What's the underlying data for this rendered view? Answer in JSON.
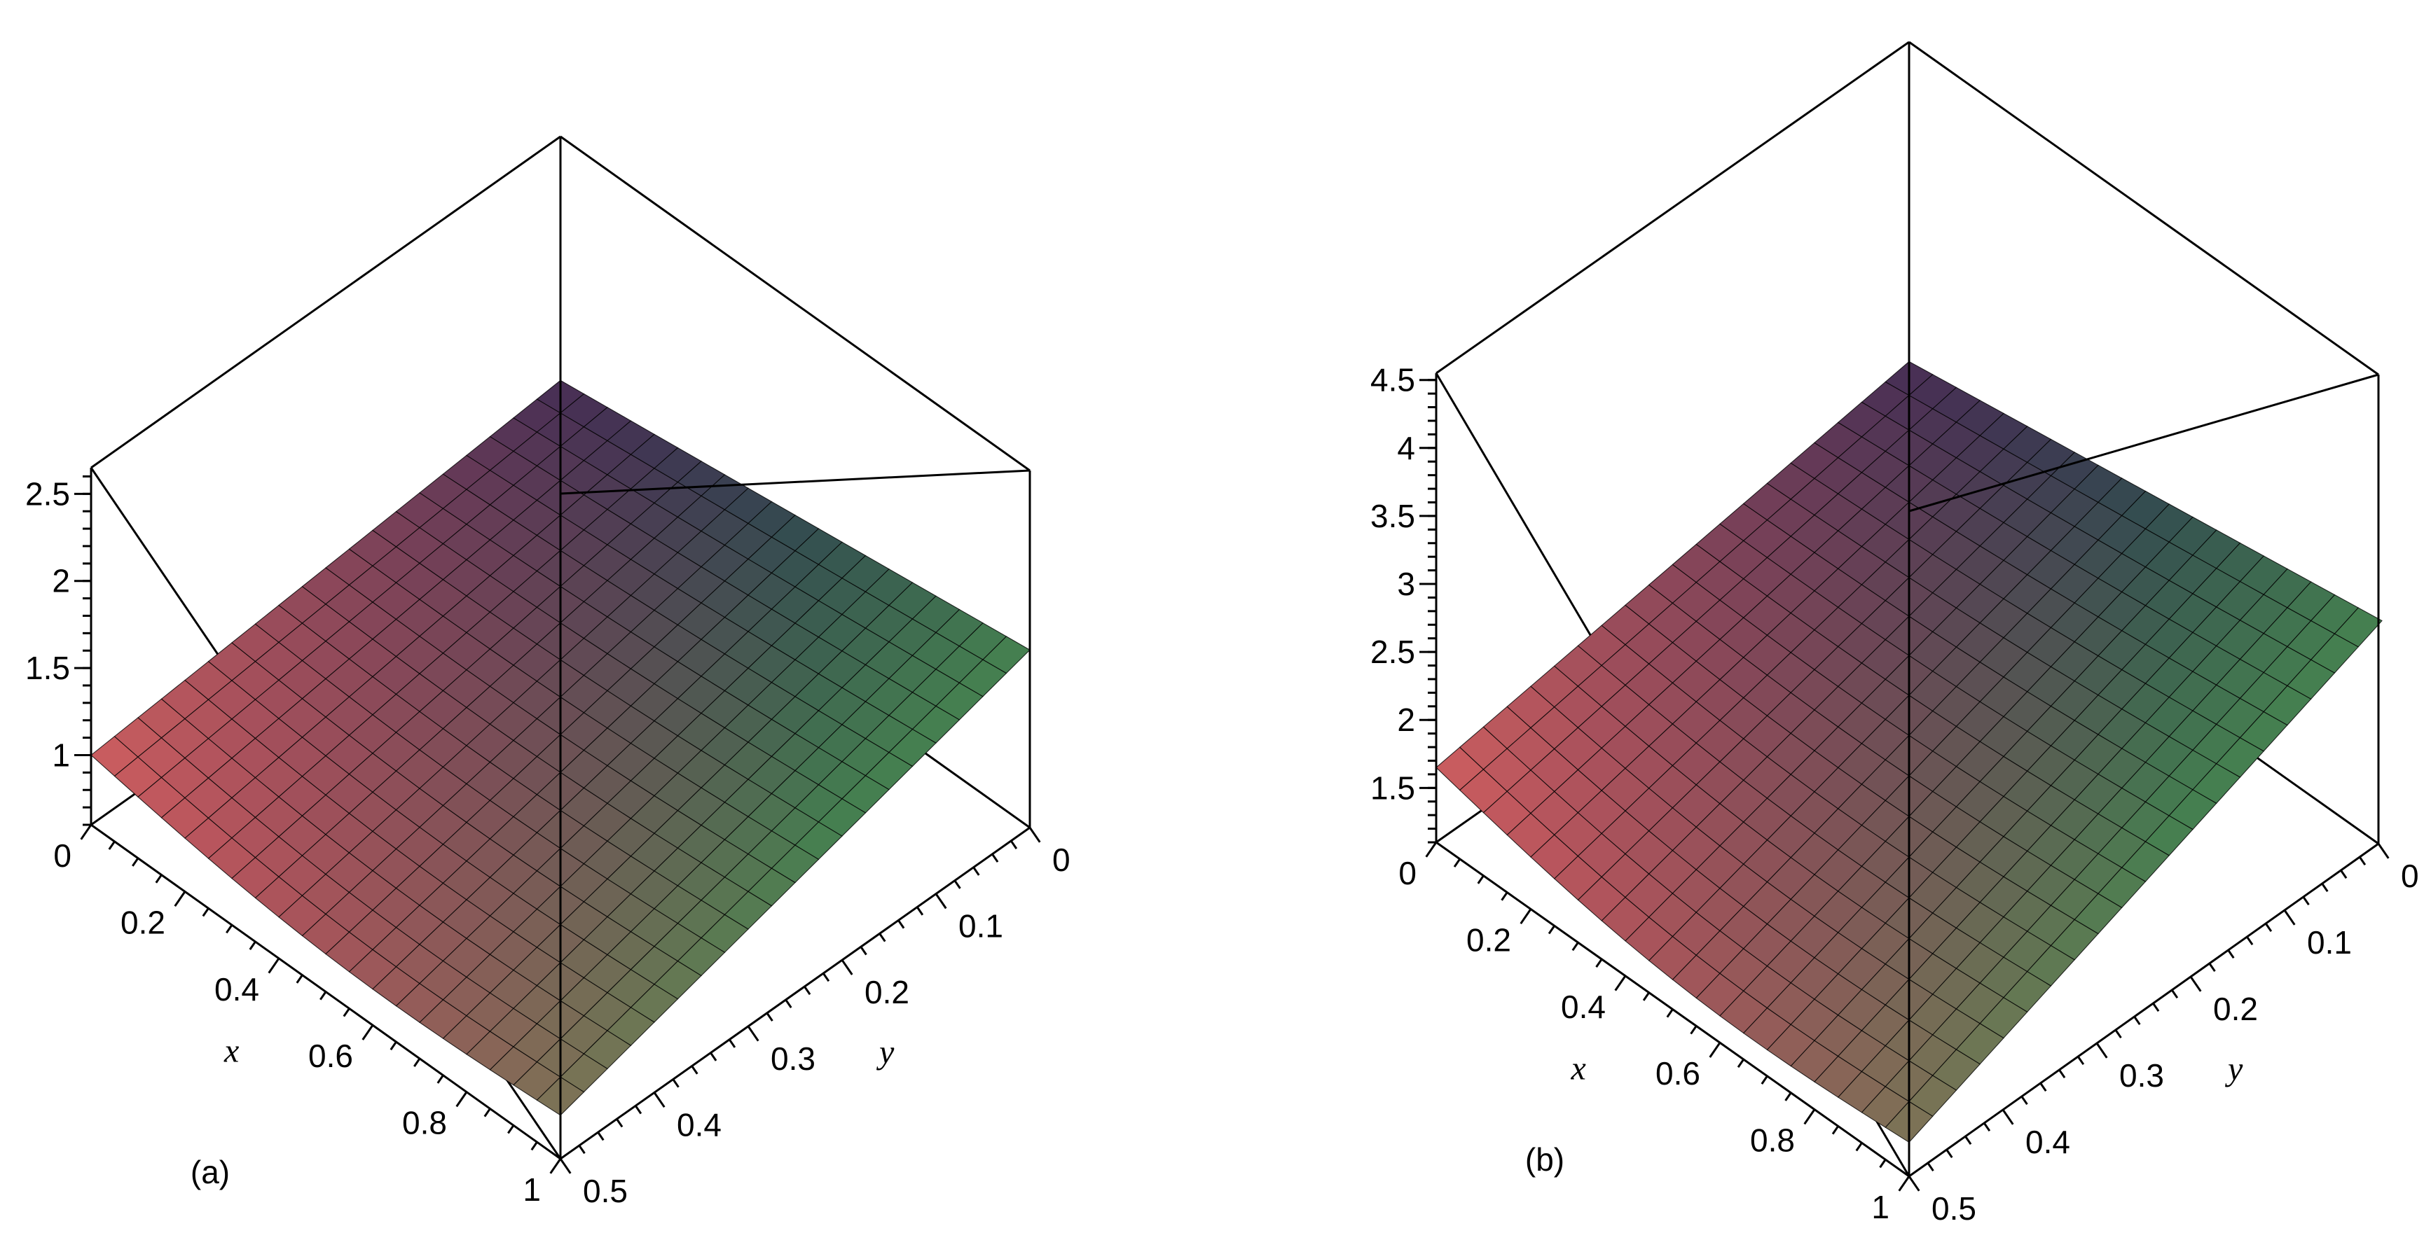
{
  "chart_data": [
    {
      "type": "surface",
      "panel_label": "(a)",
      "xlabel": "x",
      "ylabel": "y",
      "xlim": [
        0,
        1
      ],
      "ylim": [
        0,
        0.5
      ],
      "zlim": [
        0.6,
        2.65
      ],
      "x_ticks": [
        "0",
        "0.2",
        "0.4",
        "0.6",
        "0.8",
        "1"
      ],
      "y_ticks": [
        "0",
        "0.1",
        "0.2",
        "0.3",
        "0.4",
        "0.5"
      ],
      "z_ticks": [
        "1",
        "1.5",
        "2",
        "2.5"
      ],
      "surface_corners": {
        "x0_y0.5": 1.0,
        "x1_y0": 1.62,
        "x0_y0": 1.25,
        "x1_y0.5": 0.85
      },
      "colors": {
        "low": "#c85050",
        "high": "#3c8c50"
      }
    },
    {
      "type": "surface",
      "panel_label": "(b)",
      "xlabel": "x",
      "ylabel": "y",
      "xlim": [
        0,
        1
      ],
      "ylim": [
        0,
        0.5
      ],
      "zlim": [
        1.1,
        4.55
      ],
      "x_ticks": [
        "0",
        "0.2",
        "0.4",
        "0.6",
        "0.8",
        "1"
      ],
      "y_ticks": [
        "0",
        "0.1",
        "0.2",
        "0.3",
        "0.4",
        "0.5"
      ],
      "z_ticks": [
        "1.5",
        "2",
        "2.5",
        "3",
        "3.5",
        "4",
        "4.5"
      ],
      "surface_corners": {
        "x0_y0.5": 1.65,
        "x1_y0": 2.75,
        "x0_y0": 2.2,
        "x1_y0.5": 1.35
      },
      "colors": {
        "low": "#c85050",
        "high": "#3c8c50"
      }
    }
  ]
}
